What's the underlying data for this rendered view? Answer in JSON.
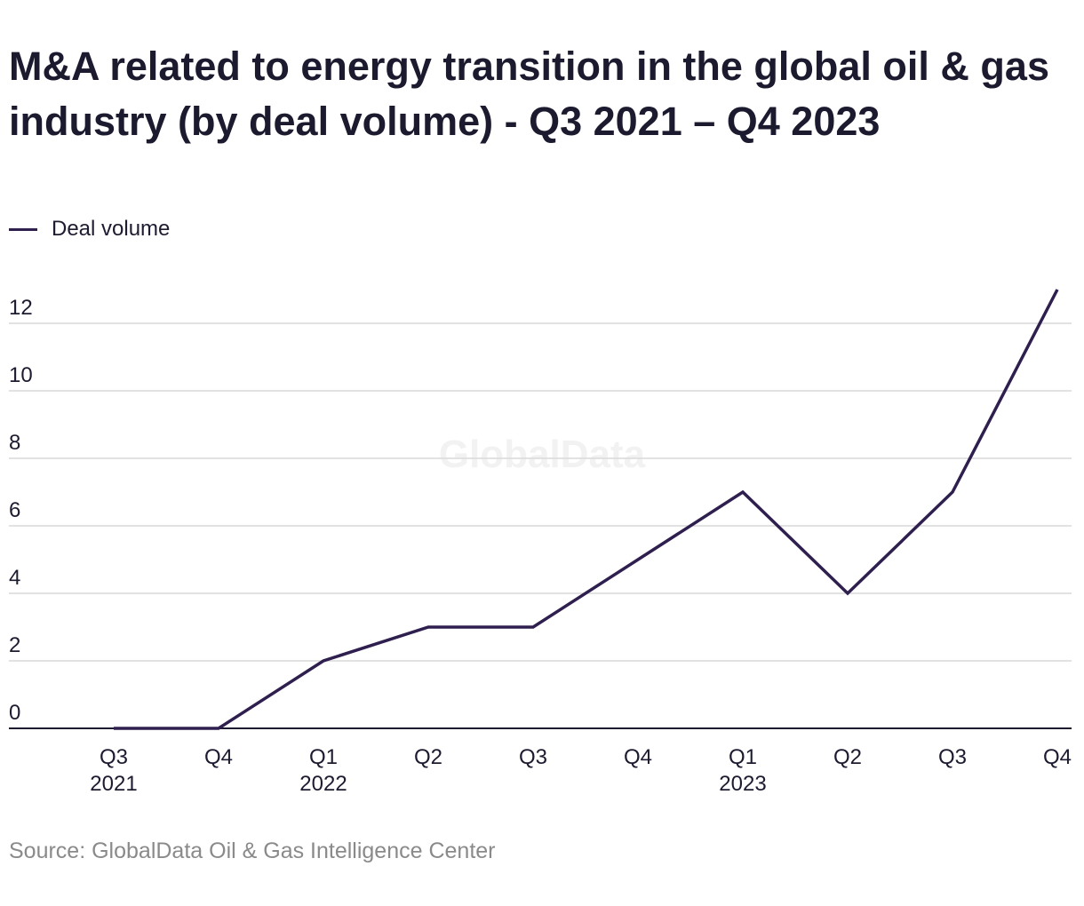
{
  "chart_data": {
    "type": "line",
    "title": "M&A related to energy transition in the global oil & gas industry (by deal volume) - Q3 2021 – Q4 2023",
    "xlabel": "",
    "ylabel": "",
    "categories": [
      "Q3 2021",
      "Q4 2021",
      "Q1 2022",
      "Q2 2022",
      "Q3 2022",
      "Q4 2022",
      "Q1 2023",
      "Q2 2023",
      "Q3 2023",
      "Q4 2023"
    ],
    "tick_labels": [
      [
        "Q3",
        "2021"
      ],
      [
        "Q4"
      ],
      [
        "Q1",
        "2022"
      ],
      [
        "Q2"
      ],
      [
        "Q3"
      ],
      [
        "Q4"
      ],
      [
        "Q1",
        "2023"
      ],
      [
        "Q2"
      ],
      [
        "Q3"
      ],
      [
        "Q4"
      ]
    ],
    "series": [
      {
        "name": "Deal volume",
        "values": [
          0,
          0,
          2,
          3,
          3,
          5,
          7,
          4,
          7,
          13
        ],
        "color": "#2e1f4f"
      }
    ],
    "y_ticks": [
      "0",
      "2",
      "4",
      "6",
      "8",
      "10",
      "12"
    ],
    "ylim": [
      0,
      13
    ],
    "grid": true,
    "legend_position": "top-left"
  },
  "watermark": "GlobalData",
  "source": "Source: GlobalData Oil & Gas Intelligence Center",
  "colors": {
    "line": "#2e1f4f",
    "grid": "#d9d9d9",
    "axis": "#1c1b30",
    "tick_text": "#1c1b30",
    "source_text": "#8a8a8a"
  }
}
